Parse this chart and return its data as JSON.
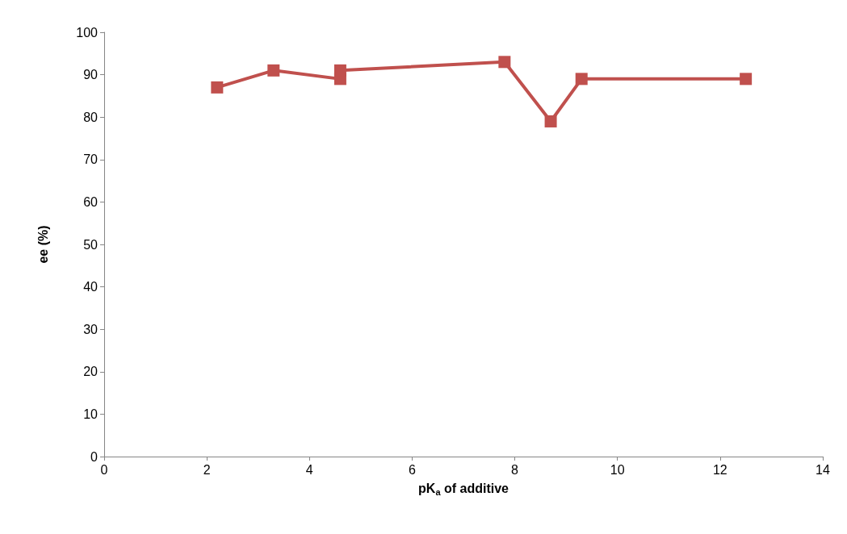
{
  "chart_data": {
    "type": "line",
    "xlabel": "pK$_{a}$ of additive",
    "ylabel": "ee (%)",
    "x": [
      2.2,
      3.3,
      4.6,
      4.6,
      7.8,
      8.7,
      9.3,
      12.5
    ],
    "series": [
      {
        "color": "#c0504d",
        "values": [
          87,
          91,
          89,
          91,
          93,
          79,
          89,
          89
        ]
      }
    ],
    "xlim": [
      0,
      14
    ],
    "xticks": [
      0,
      2,
      4,
      6,
      8,
      10,
      12,
      14
    ],
    "ylim": [
      0,
      100
    ],
    "yticks": [
      0,
      10,
      20,
      30,
      40,
      50,
      60,
      70,
      80,
      90,
      100
    ],
    "marker": "square",
    "line_style": "solid"
  }
}
